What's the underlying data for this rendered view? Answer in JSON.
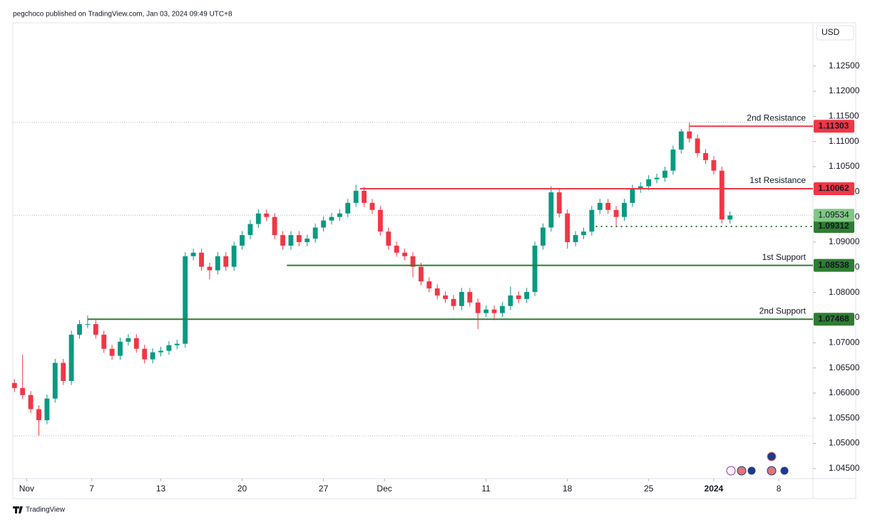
{
  "header": "pegchoco published on TradingView.com, Jan 03, 2024 09:49 UTC+8",
  "footer": "TradingView",
  "chart_data": {
    "type": "candlestick",
    "currency": "USD",
    "up_color": "#089981",
    "down_color": "#f23645",
    "open": [
      1.062,
      1.061,
      1.0596,
      1.0568,
      1.0546,
      1.0589,
      1.066,
      1.0624,
      1.0716,
      1.0737,
      1.0737,
      1.0716,
      1.0688,
      1.0674,
      1.0702,
      1.0709,
      1.0688,
      1.0667,
      1.0681,
      1.0684,
      1.0695,
      1.0698,
      1.0872,
      1.0879,
      1.0851,
      1.0844,
      1.0872,
      1.0851,
      1.0893,
      1.0914,
      1.0936,
      1.0957,
      1.095,
      1.0914,
      1.0893,
      1.0914,
      1.09,
      1.0907,
      1.0929,
      1.0943,
      1.095,
      1.0957,
      1.0978,
      1.1002,
      1.0978,
      1.0964,
      1.0921,
      1.0893,
      1.0879,
      1.0872,
      1.0851,
      1.0822,
      1.0808,
      1.0794,
      1.0787,
      1.0773,
      1.0801,
      1.078,
      1.0759,
      1.0766,
      1.0759,
      1.0773,
      1.0794,
      1.0787,
      1.0801,
      1.0893,
      1.0929,
      1.0999,
      1.0957,
      1.09,
      1.0914,
      1.0921,
      1.0964,
      1.0978,
      1.0964,
      1.095,
      1.0978,
      1.1006,
      1.1011,
      1.1025,
      1.1028,
      1.1042,
      1.1084,
      1.112,
      1.1106,
      1.1077,
      1.1063,
      1.1042,
      1.0945
    ],
    "high": [
      1.0628,
      1.0676,
      1.0604,
      1.0576,
      1.0597,
      1.0668,
      1.0668,
      1.0724,
      1.0745,
      1.0754,
      1.0745,
      1.0724,
      1.0696,
      1.071,
      1.0717,
      1.0717,
      1.0696,
      1.0689,
      1.0692,
      1.0703,
      1.0706,
      1.088,
      1.0887,
      1.0887,
      1.0859,
      1.088,
      1.088,
      1.0901,
      1.0922,
      1.0944,
      1.0965,
      1.0965,
      1.0958,
      1.0922,
      1.0922,
      1.0922,
      1.0915,
      1.0937,
      1.0951,
      1.0958,
      1.0965,
      1.0986,
      1.1014,
      1.101,
      1.0986,
      1.0972,
      1.0929,
      1.0901,
      1.0887,
      1.088,
      1.0859,
      1.083,
      1.0816,
      1.0802,
      1.0795,
      1.0809,
      1.0809,
      1.0788,
      1.0774,
      1.0774,
      1.0781,
      1.0812,
      1.0802,
      1.0809,
      1.0901,
      1.0937,
      1.1011,
      1.1007,
      1.0965,
      1.0922,
      1.0929,
      1.0972,
      1.0986,
      1.0986,
      1.0972,
      1.0986,
      1.1014,
      1.1019,
      1.1033,
      1.1036,
      1.105,
      1.1092,
      1.1125,
      1.1138,
      1.1114,
      1.1085,
      1.1071,
      1.105,
      1.0961
    ],
    "low": [
      1.0602,
      1.0588,
      1.056,
      1.0515,
      1.0538,
      1.0581,
      1.0616,
      1.0616,
      1.0708,
      1.0729,
      1.0708,
      1.068,
      1.0666,
      1.0666,
      1.0694,
      1.068,
      1.0659,
      1.0659,
      1.0673,
      1.0676,
      1.0687,
      1.069,
      1.0864,
      1.0843,
      1.0826,
      1.0836,
      1.0843,
      1.0843,
      1.0885,
      1.0906,
      1.0928,
      1.0942,
      1.0906,
      1.0885,
      1.0885,
      1.0892,
      1.0892,
      1.0899,
      1.0921,
      1.0935,
      1.0942,
      1.0949,
      1.097,
      1.097,
      1.0956,
      1.0913,
      1.0885,
      1.0871,
      1.0864,
      1.083,
      1.0814,
      1.08,
      1.0786,
      1.0779,
      1.0765,
      1.0765,
      1.0772,
      1.0727,
      1.0751,
      1.0745,
      1.0751,
      1.0765,
      1.0779,
      1.0779,
      1.0793,
      1.0885,
      1.0921,
      1.0949,
      1.0887,
      1.0892,
      1.0906,
      1.0913,
      1.0956,
      1.0956,
      1.0931,
      1.0942,
      1.097,
      1.0998,
      1.1003,
      1.1017,
      1.102,
      1.1034,
      1.1076,
      1.1098,
      1.1069,
      1.1055,
      1.1034,
      1.0937,
      1.0937
    ],
    "close": [
      1.061,
      1.0596,
      1.0568,
      1.0546,
      1.0589,
      1.066,
      1.0624,
      1.0716,
      1.0737,
      1.0737,
      1.0716,
      1.0688,
      1.0674,
      1.0702,
      1.0709,
      1.0688,
      1.0667,
      1.0681,
      1.0684,
      1.0695,
      1.0698,
      1.0872,
      1.0879,
      1.0851,
      1.0844,
      1.0872,
      1.0851,
      1.0893,
      1.0914,
      1.0936,
      1.0957,
      1.095,
      1.0914,
      1.0893,
      1.0914,
      1.09,
      1.0907,
      1.0929,
      1.0943,
      1.095,
      1.0957,
      1.0978,
      1.1002,
      1.0978,
      1.0964,
      1.0921,
      1.0893,
      1.0879,
      1.0872,
      1.0851,
      1.0822,
      1.0808,
      1.0794,
      1.0787,
      1.0773,
      1.0801,
      1.078,
      1.0759,
      1.0766,
      1.0759,
      1.0773,
      1.0794,
      1.0787,
      1.0801,
      1.0893,
      1.0929,
      1.0999,
      1.0957,
      1.09,
      1.0914,
      1.0921,
      1.0964,
      1.0978,
      1.0964,
      1.095,
      1.0978,
      1.1006,
      1.1011,
      1.1025,
      1.1028,
      1.1042,
      1.1084,
      1.112,
      1.1106,
      1.1077,
      1.1063,
      1.1042,
      1.0945,
      1.0953
    ],
    "xlim": [
      -0.2,
      98.2
    ],
    "xticks": [
      {
        "value": 1.5,
        "label": "Nov"
      },
      {
        "value": 9.5,
        "label": "7"
      },
      {
        "value": 18,
        "label": "13"
      },
      {
        "value": 28,
        "label": "20"
      },
      {
        "value": 38,
        "label": "27"
      },
      {
        "value": 45.5,
        "label": "Dec"
      },
      {
        "value": 58,
        "label": "11"
      },
      {
        "value": 68,
        "label": "18"
      },
      {
        "value": 78,
        "label": "25"
      },
      {
        "value": 86,
        "label": "2024"
      },
      {
        "value": 94,
        "label": "8"
      }
    ],
    "ylim": [
      1.043,
      1.1336
    ],
    "yticks": [
      {
        "value": 1.045,
        "label": "1.04500"
      },
      {
        "value": 1.05,
        "label": "1.05000"
      },
      {
        "value": 1.055,
        "label": "1.05500"
      },
      {
        "value": 1.06,
        "label": "1.06000"
      },
      {
        "value": 1.065,
        "label": "1.06500"
      },
      {
        "value": 1.07,
        "label": "1.07000"
      },
      {
        "value": 1.075,
        "label": "1.07500"
      },
      {
        "value": 1.08,
        "label": "1.08000"
      },
      {
        "value": 1.085,
        "label": "1.08500"
      },
      {
        "value": 1.09,
        "label": "1.09000"
      },
      {
        "value": 1.095,
        "label": "1.09500"
      },
      {
        "value": 1.1,
        "label": "1.10000"
      },
      {
        "value": 1.105,
        "label": "1.10500"
      },
      {
        "value": 1.11,
        "label": "1.11000"
      },
      {
        "value": 1.115,
        "label": "1.11500"
      },
      {
        "value": 1.12,
        "label": "1.12000"
      },
      {
        "value": 1.125,
        "label": "1.12500"
      }
    ],
    "last_price": 1.09534,
    "last_price_color": "#81c784",
    "levels": [
      {
        "name": "2nd Resistance",
        "value": 1.11303,
        "color": "#f23645",
        "x_start": 83,
        "style": "solid"
      },
      {
        "name": "1st Resistance",
        "value": 1.10062,
        "color": "#f23645",
        "x_start": 42.5,
        "style": "solid"
      },
      {
        "value": 1.09312,
        "color": "#2e7d32",
        "x_start": 71.5,
        "style": "dotted"
      },
      {
        "name": "1st Support",
        "value": 1.08538,
        "color": "#2e7d32",
        "x_start": 33.5,
        "style": "solid"
      },
      {
        "name": "2nd Support",
        "value": 1.07468,
        "color": "#2e7d32",
        "x_start": 9,
        "style": "solid"
      }
    ]
  }
}
